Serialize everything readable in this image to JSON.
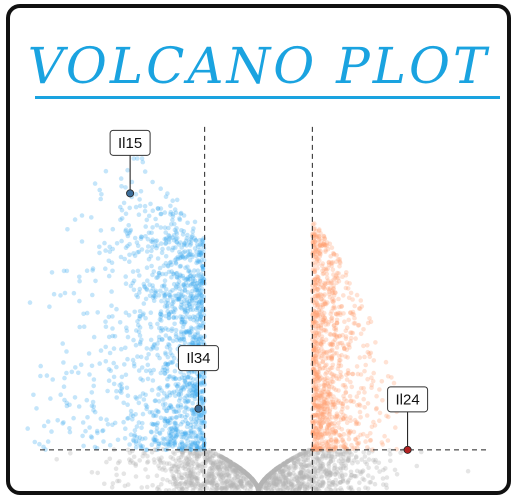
{
  "title": "VOLCANO PLOT",
  "colors": {
    "title": "#1aa3e0",
    "down": "#3aa8ee",
    "up": "#ffa070",
    "ns": "#b4b4b4",
    "highlight_down": "#3d6e9a",
    "highlight_up": "#b22222"
  },
  "chart_data": {
    "type": "scatter",
    "title": "VOLCANO PLOT",
    "xlabel": "",
    "ylabel": "",
    "xlim": [
      -6,
      6
    ],
    "ylim": [
      0,
      12
    ],
    "fold_change_thresholds": [
      -1.3,
      1.3
    ],
    "significance_threshold": 1.3,
    "grid": false,
    "groups": [
      {
        "name": "down",
        "color": "#3aa8ee",
        "n": 1400
      },
      {
        "name": "up",
        "color": "#ffa070",
        "n": 1000
      },
      {
        "name": "not-significant",
        "color": "#b4b4b4",
        "n": 1500
      }
    ],
    "highlighted_points": [
      {
        "label": "Il15",
        "x": -3.1,
        "y": 9.4
      },
      {
        "label": "Il34",
        "x": -1.45,
        "y": 2.6
      },
      {
        "label": "Il24",
        "x": 3.6,
        "y": 1.3
      }
    ]
  }
}
